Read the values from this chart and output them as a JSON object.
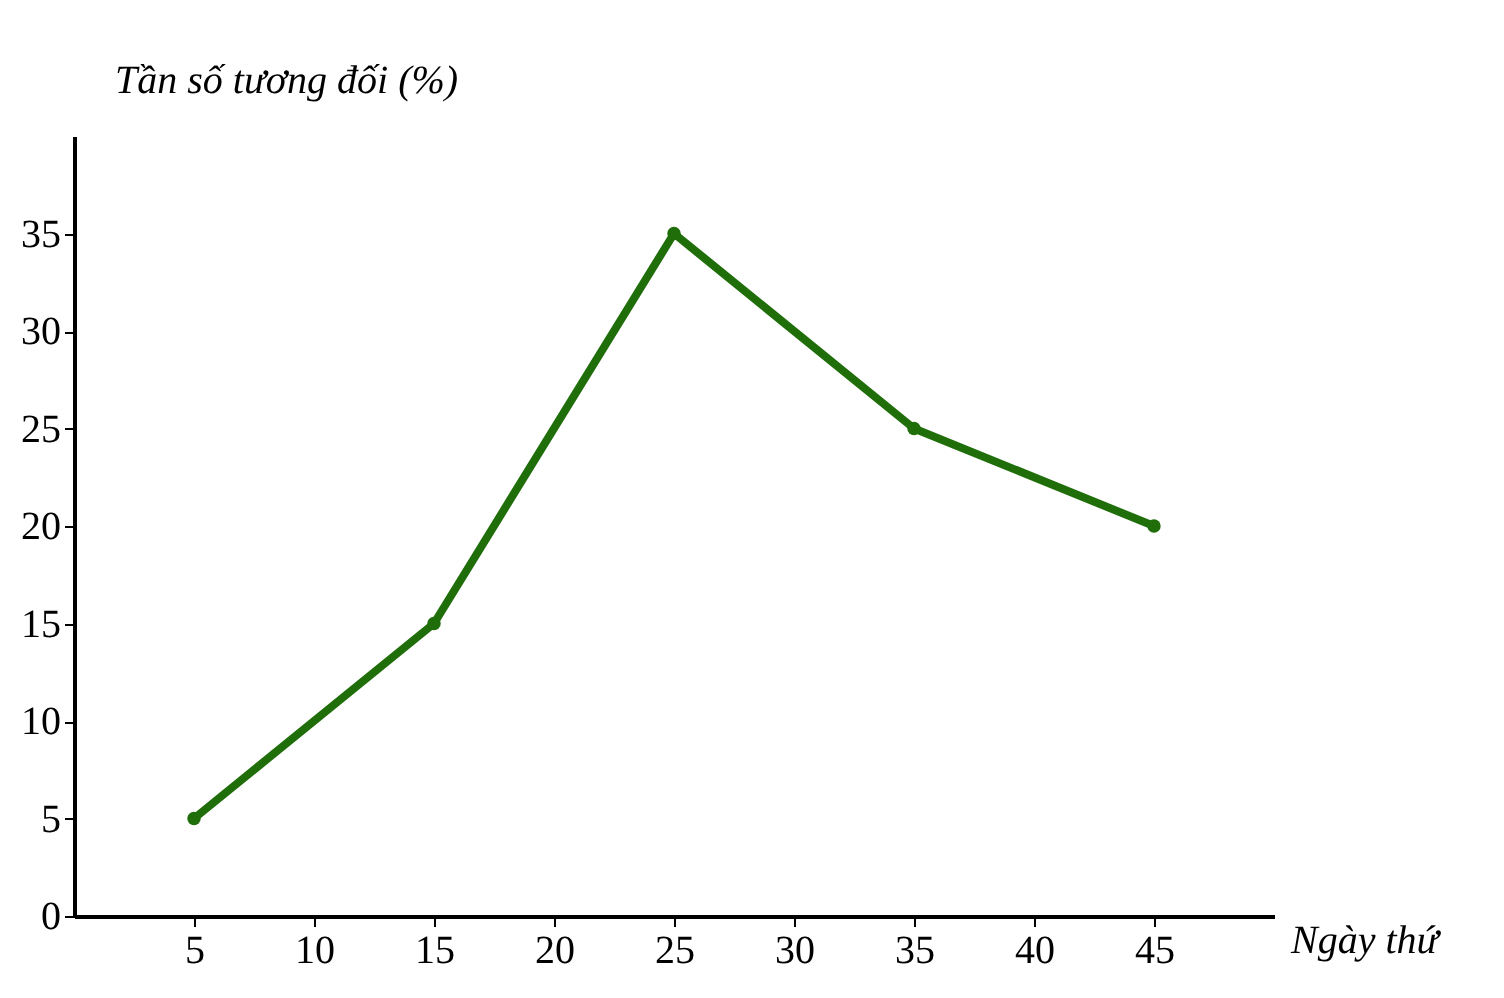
{
  "chart_data": {
    "type": "line",
    "xlabel": "Ngày thứ",
    "ylabel": "Tần số tương đối (%)",
    "x": [
      5,
      15,
      25,
      35,
      45
    ],
    "series": [
      {
        "color": "#1f6e0a",
        "values": [
          5,
          15,
          35,
          25,
          20
        ]
      }
    ],
    "xlim": [
      0,
      50
    ],
    "xticks": [
      5,
      10,
      15,
      20,
      25,
      30,
      35,
      40,
      45
    ],
    "ylim": [
      0,
      40
    ],
    "yticks": [
      0,
      5,
      10,
      15,
      20,
      25,
      30,
      35
    ],
    "marker": "circle",
    "line_style": "solid",
    "grid": false,
    "legend": false
  }
}
